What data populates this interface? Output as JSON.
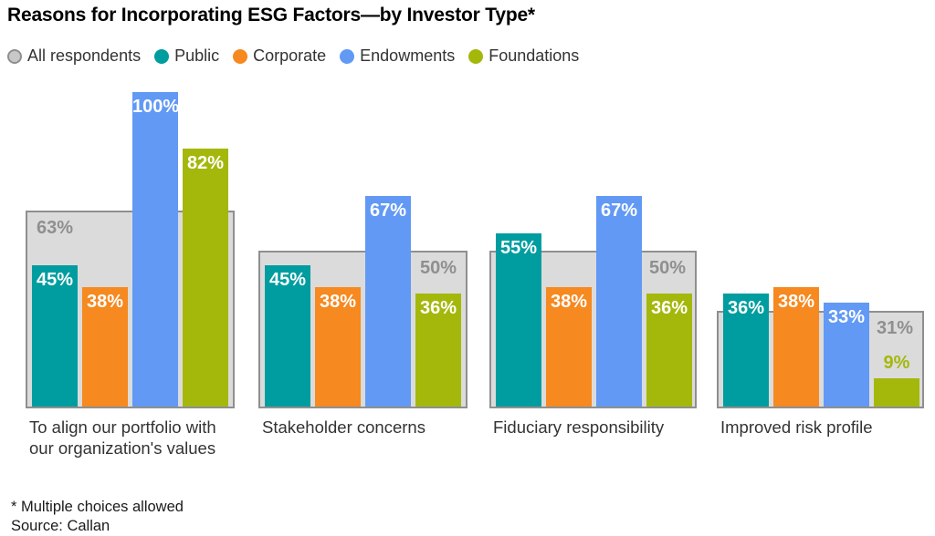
{
  "title": "Reasons for Incorporating ESG Factors—by Investor Type*",
  "footnote": "* Multiple choices allowed",
  "source": "Source: Callan",
  "colors": {
    "all_fill": "#DBDBDB",
    "all_border": "#8F8F8F",
    "all_label_text": "#8F8F8F",
    "public": "#009DA0",
    "corporate": "#F6891F",
    "endowments": "#6199F5",
    "foundations": "#A4B80B",
    "legend_all_fill": "#C8C8C8",
    "legend_all_border": "#8F8F8F",
    "bar_label_text": "#FFFFFF",
    "title_text": "#000000",
    "category_text": "#333333"
  },
  "legend": [
    {
      "id": "all",
      "label": "All respondents"
    },
    {
      "id": "public",
      "label": "Public"
    },
    {
      "id": "corporate",
      "label": "Corporate"
    },
    {
      "id": "endowments",
      "label": "Endowments"
    },
    {
      "id": "foundations",
      "label": "Foundations"
    }
  ],
  "chart_data": {
    "type": "bar",
    "title": "Reasons for Incorporating ESG Factors—by Investor Type*",
    "unit": "%",
    "ylim": [
      0,
      100
    ],
    "grid": false,
    "legend_position": "top",
    "categories": [
      "To align our portfolio with our organization's values",
      "Stakeholder concerns",
      "Fiduciary responsibility",
      "Improved risk profile"
    ],
    "series": [
      {
        "name": "All respondents",
        "role": "background",
        "values": [
          63,
          50,
          50,
          31
        ]
      },
      {
        "name": "Public",
        "values": [
          45,
          45,
          55,
          36
        ]
      },
      {
        "name": "Corporate",
        "values": [
          38,
          38,
          38,
          38
        ]
      },
      {
        "name": "Endowments",
        "values": [
          100,
          67,
          67,
          33
        ]
      },
      {
        "name": "Foundations",
        "values": [
          82,
          36,
          36,
          9
        ]
      }
    ],
    "all_label_align": [
      "left",
      "right",
      "right",
      "right"
    ],
    "annotations": "Percent labels shown on every bar; All-respondents value shown as gray label inside gray background box"
  }
}
